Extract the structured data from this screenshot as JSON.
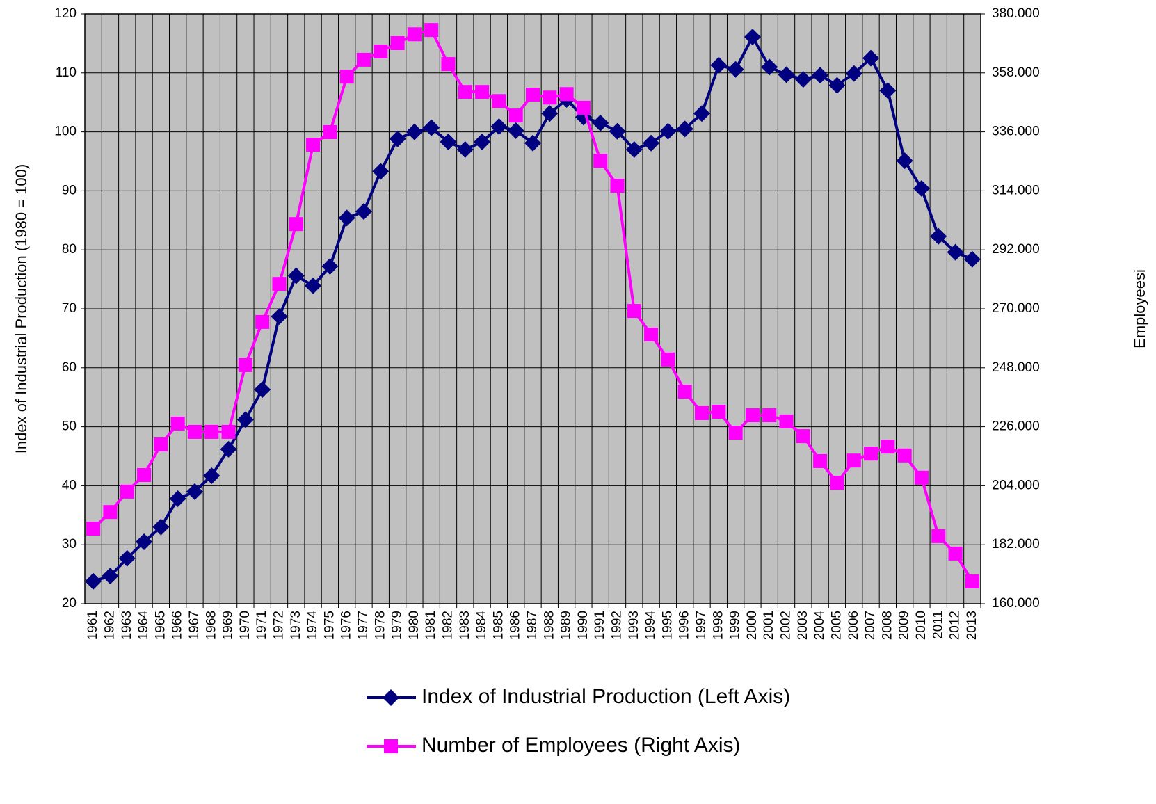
{
  "chart_data": {
    "type": "line",
    "ylabel": "Index of Industrial Production (1980 = 100)",
    "y2label": "Employeesi",
    "categories": [
      "1961",
      "1962",
      "1963",
      "1964",
      "1965",
      "1966",
      "1967",
      "1968",
      "1969",
      "1970",
      "1971",
      "1972",
      "1973",
      "1974",
      "1975",
      "1976",
      "1977",
      "1978",
      "1979",
      "1980",
      "1981",
      "1982",
      "1983",
      "1984",
      "1985",
      "1986",
      "1987",
      "1988",
      "1989",
      "1990",
      "1991",
      "1992",
      "1993",
      "1994",
      "1995",
      "1996",
      "1997",
      "1998",
      "1999",
      "2000",
      "2001",
      "2002",
      "2003",
      "2004",
      "2005",
      "2006",
      "2007",
      "2008",
      "2009",
      "2010",
      "2011",
      "2012",
      "2013"
    ],
    "series": [
      {
        "name": "Index of Industrial Production (Left Axis)",
        "color": "#000080",
        "marker": "diamond",
        "axis": "y",
        "values": [
          23.8,
          24.7,
          27.7,
          30.5,
          33,
          37.8,
          39,
          41.7,
          46.2,
          51.2,
          56.3,
          68.7,
          75.6,
          73.9,
          77.2,
          85.4,
          86.5,
          93.3,
          98.8,
          100,
          100.7,
          98.3,
          97,
          98.3,
          100.9,
          100.2,
          98.1,
          103.1,
          105.5,
          102.5,
          101.5,
          100.1,
          97,
          98.1,
          100.1,
          100.5,
          103.1,
          111.3,
          110.6,
          116.1,
          111,
          109.7,
          108.9,
          109.6,
          107.9,
          109.9,
          112.5,
          107,
          95.1,
          90.4,
          82.3,
          79.6,
          78.4
        ]
      },
      {
        "name": "Number of Employees (Right Axis)",
        "color": "#ff00ff",
        "marker": "square",
        "axis": "y2",
        "values": [
          188000,
          194200,
          201800,
          208000,
          219400,
          227200,
          224100,
          224100,
          224100,
          249000,
          265100,
          279300,
          301600,
          331200,
          335900,
          356600,
          362900,
          366000,
          369100,
          372400,
          374000,
          361300,
          350900,
          350900,
          347500,
          342100,
          349900,
          348800,
          350100,
          345000,
          325200,
          315900,
          269200,
          260400,
          251100,
          239100,
          231100,
          231600,
          223800,
          230300,
          230300,
          228000,
          222500,
          213200,
          205100,
          213400,
          216000,
          218600,
          215300,
          207000,
          185200,
          178700,
          168300
        ]
      }
    ],
    "ylim": [
      20,
      120
    ],
    "yticks": [
      20,
      30,
      40,
      50,
      60,
      70,
      80,
      90,
      100,
      110,
      120
    ],
    "y2lim": [
      160000,
      380000
    ],
    "y2ticks": [
      {
        "value": 160000,
        "label": "160.000"
      },
      {
        "value": 182000,
        "label": "182.000"
      },
      {
        "value": 204000,
        "label": "204.000"
      },
      {
        "value": 226000,
        "label": "226.000"
      },
      {
        "value": 248000,
        "label": "248.000"
      },
      {
        "value": 270000,
        "label": "270.000"
      },
      {
        "value": 292000,
        "label": "292.000"
      },
      {
        "value": 314000,
        "label": "314.000"
      },
      {
        "value": 336000,
        "label": "336.000"
      },
      {
        "value": 358000,
        "label": "358.000"
      },
      {
        "value": 380000,
        "label": "380.000"
      }
    ],
    "grid": true,
    "legend": "bottom",
    "plot_background": "#c0c0c0"
  }
}
